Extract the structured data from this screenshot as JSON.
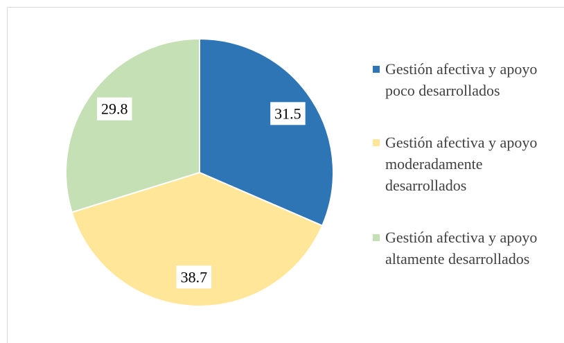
{
  "chart_data": {
    "type": "pie",
    "categories": [
      "Gestión afectiva y apoyo poco desarrollados",
      "Gestión afectiva y apoyo moderadamente desarrollados",
      "Gestión afectiva y apoyo altamente desarrollados"
    ],
    "values": [
      31.5,
      38.7,
      29.8
    ],
    "colors": [
      "#2e75b6",
      "#ffe699",
      "#c5e0b4"
    ],
    "legend": "right"
  }
}
